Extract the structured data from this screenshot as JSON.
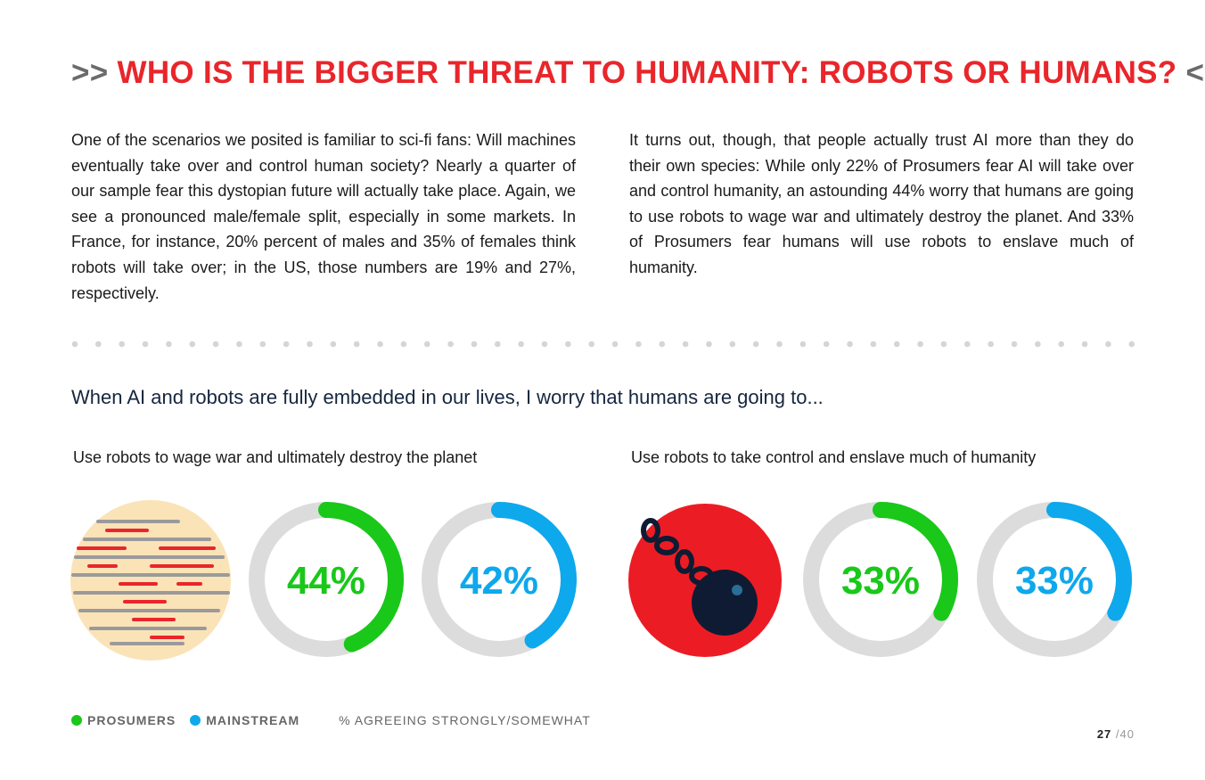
{
  "header": {
    "open_mark": ">>",
    "title": "WHO IS THE BIGGER THREAT TO HUMANITY: ROBOTS OR HUMANS?",
    "close_mark": "<<"
  },
  "paragraphs": [
    "One of the scenarios we posited is familiar to sci-fi fans: Will machines eventually take over and control human society? Nearly a quarter of our sample fear this dystopian future will actually take place. Again, we see a pronounced male/female split, especially in some markets. In France, for instance, 20% percent of males and 35% of females think robots will take over; in the US, those numbers are 19% and 27%, respectively.",
    "It turns out, though, that people actually trust AI more than they do their own species: While only 22% of Prosumers fear AI will take over and control humanity, an astounding 44% worry that humans are going to use robots to wage war and ultimately destroy the planet. And 33% of Prosumers fear humans will use robots to enslave much of humanity."
  ],
  "question": "When AI and robots are fully embedded in our lives, I worry that humans are going to...",
  "sections": [
    {
      "label": "Use robots to wage war and ultimately destroy the planet",
      "stats": [
        {
          "value": 44,
          "value_label": "44%",
          "color": "#19c819"
        },
        {
          "value": 42,
          "value_label": "42%",
          "color": "#0ea8ec"
        }
      ]
    },
    {
      "label": "Use robots to take control and enslave much of humanity",
      "stats": [
        {
          "value": 33,
          "value_label": "33%",
          "color": "#19c819"
        },
        {
          "value": 33,
          "value_label": "33%",
          "color": "#0ea8ec"
        }
      ]
    }
  ],
  "legend": [
    {
      "name": "PROSUMERS",
      "color": "#19c819"
    },
    {
      "name": "MAINSTREAM",
      "color": "#0ea8ec"
    }
  ],
  "note": "% AGREEING STRONGLY/SOMEWHAT",
  "page": {
    "current": "27",
    "total": "/40"
  }
}
